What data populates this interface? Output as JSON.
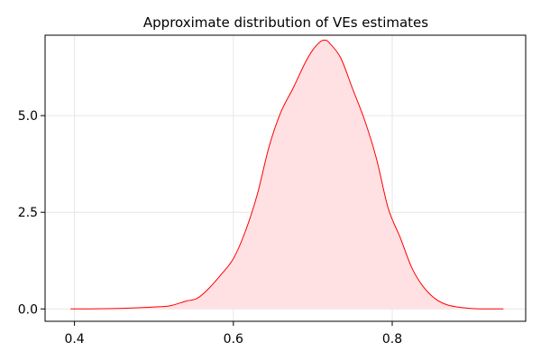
{
  "chart_data": {
    "type": "area",
    "title": "Approximate distribution of VEs estimates",
    "xlabel": "",
    "ylabel": "",
    "xlim": [
      0.363,
      0.968
    ],
    "ylim": [
      -0.32,
      7.08
    ],
    "xticks": [
      0.4,
      0.6,
      0.8
    ],
    "xtick_labels": [
      "0.4",
      "0.6",
      "0.8"
    ],
    "yticks": [
      0.0,
      2.5,
      5.0
    ],
    "ytick_labels": [
      "0.0",
      "2.5",
      "5.0"
    ],
    "grid": true,
    "legend": "none",
    "series": [
      {
        "x": [
          0.395,
          0.42,
          0.45,
          0.48,
          0.5,
          0.52,
          0.54,
          0.555,
          0.57,
          0.585,
          0.6,
          0.615,
          0.63,
          0.645,
          0.66,
          0.675,
          0.69,
          0.7,
          0.71,
          0.715,
          0.72,
          0.735,
          0.75,
          0.765,
          0.78,
          0.795,
          0.81,
          0.825,
          0.84,
          0.855,
          0.87,
          0.89,
          0.91,
          0.94
        ],
        "y": [
          0.0,
          0.0,
          0.01,
          0.03,
          0.05,
          0.08,
          0.2,
          0.28,
          0.55,
          0.9,
          1.3,
          2.0,
          2.95,
          4.2,
          5.1,
          5.7,
          6.35,
          6.7,
          6.92,
          6.95,
          6.9,
          6.5,
          5.7,
          4.9,
          3.9,
          2.6,
          1.85,
          1.05,
          0.55,
          0.25,
          0.1,
          0.03,
          0.0,
          0.0
        ]
      }
    ],
    "colors": {
      "line": "#ff0000",
      "fill": "#ffe0e3",
      "grid": "#e6e6e6",
      "frame": "#000000"
    }
  }
}
